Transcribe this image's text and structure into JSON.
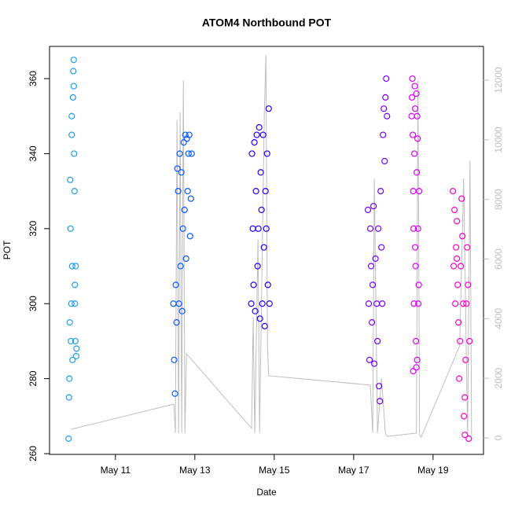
{
  "chart_data": {
    "type": "scatter",
    "title": "ATOM4 Northbound POT",
    "x_label": "Date",
    "y_label": "POT",
    "xlim": [
      9.34,
      20.27
    ],
    "ylim": [
      259.8,
      368.6
    ],
    "y2lim": [
      -554,
      13134
    ],
    "xticks": [
      {
        "value": 11,
        "label": "May 11"
      },
      {
        "value": 13,
        "label": "May 13"
      },
      {
        "value": 15,
        "label": "May 15"
      },
      {
        "value": 17,
        "label": "May 17"
      },
      {
        "value": 19,
        "label": "May 19"
      }
    ],
    "yticks": [
      260,
      280,
      300,
      320,
      340,
      360
    ],
    "y2ticks": [
      0,
      2000,
      4000,
      6000,
      8000,
      10000,
      12000
    ],
    "y2_color": "#bebebe",
    "grid": false,
    "series": [
      {
        "color": "#1f9ef5",
        "style": "points",
        "x": [
          9.82,
          9.84,
          9.85,
          9.86,
          9.87,
          9.88,
          9.89,
          9.9,
          9.91,
          9.92,
          9.93,
          9.94,
          9.95,
          9.96,
          9.97,
          9.98,
          9.99,
          10.0,
          10.01,
          10.02,
          9.83,
          9.9,
          9.95,
          9.98
        ],
        "values": [
          264,
          280,
          295,
          333,
          320,
          290,
          300,
          345,
          310,
          285,
          355,
          362,
          365,
          340,
          330,
          300,
          290,
          310,
          286,
          288,
          275,
          350,
          358,
          305
        ]
      },
      {
        "color": "#0b5cff",
        "style": "points",
        "x": [
          12.46,
          12.48,
          12.5,
          12.52,
          12.54,
          12.56,
          12.58,
          12.6,
          12.62,
          12.64,
          12.66,
          12.68,
          12.7,
          12.72,
          12.74,
          12.76,
          12.78,
          12.8,
          12.82,
          12.84,
          12.86,
          12.88,
          12.9,
          12.92
        ],
        "values": [
          300,
          285,
          276,
          305,
          295,
          336,
          330,
          300,
          340,
          310,
          335,
          298,
          320,
          343,
          325,
          345,
          312,
          344,
          330,
          340,
          345,
          318,
          328,
          340
        ]
      },
      {
        "color": "#2500ff",
        "style": "points",
        "x": [
          14.42,
          14.44,
          14.46,
          14.48,
          14.5,
          14.52,
          14.54,
          14.56,
          14.58,
          14.6,
          14.62,
          14.64,
          14.66,
          14.68,
          14.7,
          14.72,
          14.74,
          14.76,
          14.78,
          14.8,
          14.82,
          14.84,
          14.86,
          14.88
        ],
        "values": [
          300,
          340,
          320,
          305,
          343,
          298,
          330,
          345,
          310,
          320,
          347,
          296,
          335,
          325,
          300,
          345,
          315,
          294,
          330,
          320,
          340,
          305,
          352,
          300
        ]
      },
      {
        "color": "#7800ff",
        "style": "points",
        "x": [
          17.36,
          17.38,
          17.4,
          17.42,
          17.44,
          17.46,
          17.48,
          17.5,
          17.52,
          17.55,
          17.58,
          17.6,
          17.62,
          17.64,
          17.66,
          17.68,
          17.7,
          17.72,
          17.74,
          17.76,
          17.78,
          17.8,
          17.82,
          17.84
        ],
        "values": [
          325,
          300,
          285,
          320,
          310,
          295,
          305,
          326,
          284,
          312,
          300,
          290,
          320,
          278,
          274,
          330,
          315,
          300,
          345,
          352,
          338,
          355,
          360,
          350
        ]
      },
      {
        "color": "#df00ff",
        "style": "points",
        "x": [
          18.46,
          18.47,
          18.48,
          18.49,
          18.5,
          18.51,
          18.52,
          18.53,
          18.54,
          18.55,
          18.56,
          18.57,
          18.58,
          18.59,
          18.6,
          18.61,
          18.62,
          18.63,
          18.64,
          18.65,
          18.5,
          18.55,
          18.6,
          18.58
        ],
        "values": [
          350,
          355,
          360,
          345,
          330,
          320,
          300,
          340,
          358,
          352,
          310,
          290,
          283,
          335,
          350,
          344,
          320,
          300,
          305,
          330,
          282,
          315,
          285,
          356
        ]
      },
      {
        "color": "#ff00cc",
        "style": "points",
        "x": [
          19.5,
          19.52,
          19.54,
          19.56,
          19.58,
          19.6,
          19.62,
          19.64,
          19.66,
          19.68,
          19.7,
          19.72,
          19.74,
          19.76,
          19.78,
          19.8,
          19.82,
          19.84,
          19.86,
          19.88,
          19.9,
          19.92,
          19.6,
          19.8
        ],
        "values": [
          330,
          310,
          325,
          300,
          315,
          322,
          305,
          295,
          280,
          290,
          310,
          328,
          318,
          300,
          270,
          265,
          285,
          300,
          315,
          305,
          264,
          290,
          312,
          275
        ]
      },
      {
        "color": "#bebebe",
        "style": "line",
        "axis": "y2",
        "x": [
          9.89,
          12.47,
          12.51,
          12.55,
          12.59,
          12.63,
          12.67,
          12.71,
          12.75,
          12.79,
          14.43,
          14.47,
          14.51,
          14.59,
          14.63,
          14.75,
          14.79,
          14.83,
          14.86,
          17.42,
          17.48,
          17.52,
          17.6,
          17.7,
          17.8,
          17.84,
          18.58,
          18.62,
          18.66,
          18.7,
          19.67,
          19.77,
          19.87,
          19.93,
          19.97
        ],
        "values": [
          290,
          1135,
          160,
          10660,
          160,
          10920,
          160,
          12000,
          160,
          2820,
          317,
          4040,
          160,
          6650,
          160,
          10900,
          12830,
          3060,
          2085,
          1770,
          160,
          8700,
          160,
          2000,
          160,
          50,
          160,
          12000,
          100,
          25,
          3090,
          8700,
          25,
          9300,
          25
        ]
      }
    ]
  }
}
